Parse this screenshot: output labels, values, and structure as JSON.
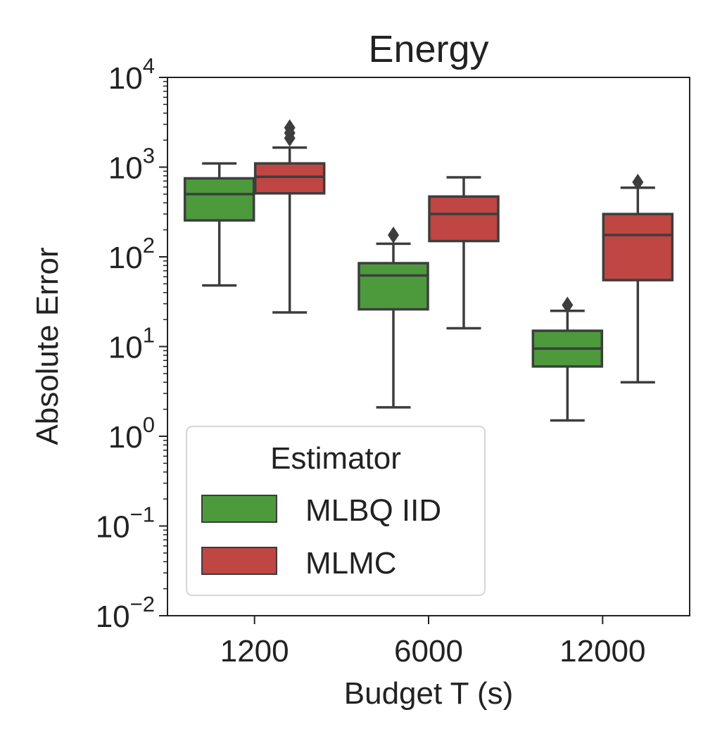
{
  "chart_data": {
    "type": "boxplot",
    "title": "Energy",
    "xlabel": "Budget T (s)",
    "ylabel": "Absolute Error",
    "yscale": "log",
    "ylim": [
      0.01,
      10000
    ],
    "y_ticks": [
      {
        "value": 0.01,
        "base": "10",
        "exp": "−2"
      },
      {
        "value": 0.1,
        "base": "10",
        "exp": "−1"
      },
      {
        "value": 1,
        "base": "10",
        "exp": "0"
      },
      {
        "value": 10,
        "base": "10",
        "exp": "1"
      },
      {
        "value": 100,
        "base": "10",
        "exp": "2"
      },
      {
        "value": 1000,
        "base": "10",
        "exp": "3"
      },
      {
        "value": 10000,
        "base": "10",
        "exp": "4"
      }
    ],
    "categories": [
      "1200",
      "6000",
      "12000"
    ],
    "legend": {
      "title": "Estimator",
      "position": "lower-left"
    },
    "grid": false,
    "series": [
      {
        "name": "MLBQ IID",
        "color": "#4c9a3c",
        "boxes": [
          {
            "whislo": 48,
            "q1": 255,
            "med": 500,
            "q3": 750,
            "whishi": 1100,
            "fliers": []
          },
          {
            "whislo": 2.1,
            "q1": 26,
            "med": 62,
            "q3": 85,
            "whishi": 140,
            "fliers": [
              175
            ]
          },
          {
            "whislo": 1.5,
            "q1": 6,
            "med": 9.5,
            "q3": 15,
            "whishi": 25,
            "fliers": [
              29
            ]
          }
        ]
      },
      {
        "name": "MLMC",
        "color": "#bf4642",
        "boxes": [
          {
            "whislo": 24,
            "q1": 510,
            "med": 780,
            "q3": 1100,
            "whishi": 1650,
            "fliers": [
              2100,
              2400,
              2750
            ]
          },
          {
            "whislo": 16,
            "q1": 150,
            "med": 300,
            "q3": 470,
            "whishi": 770,
            "fliers": []
          },
          {
            "whislo": 4,
            "q1": 55,
            "med": 175,
            "q3": 300,
            "whishi": 590,
            "fliers": [
              680
            ]
          }
        ]
      }
    ]
  }
}
